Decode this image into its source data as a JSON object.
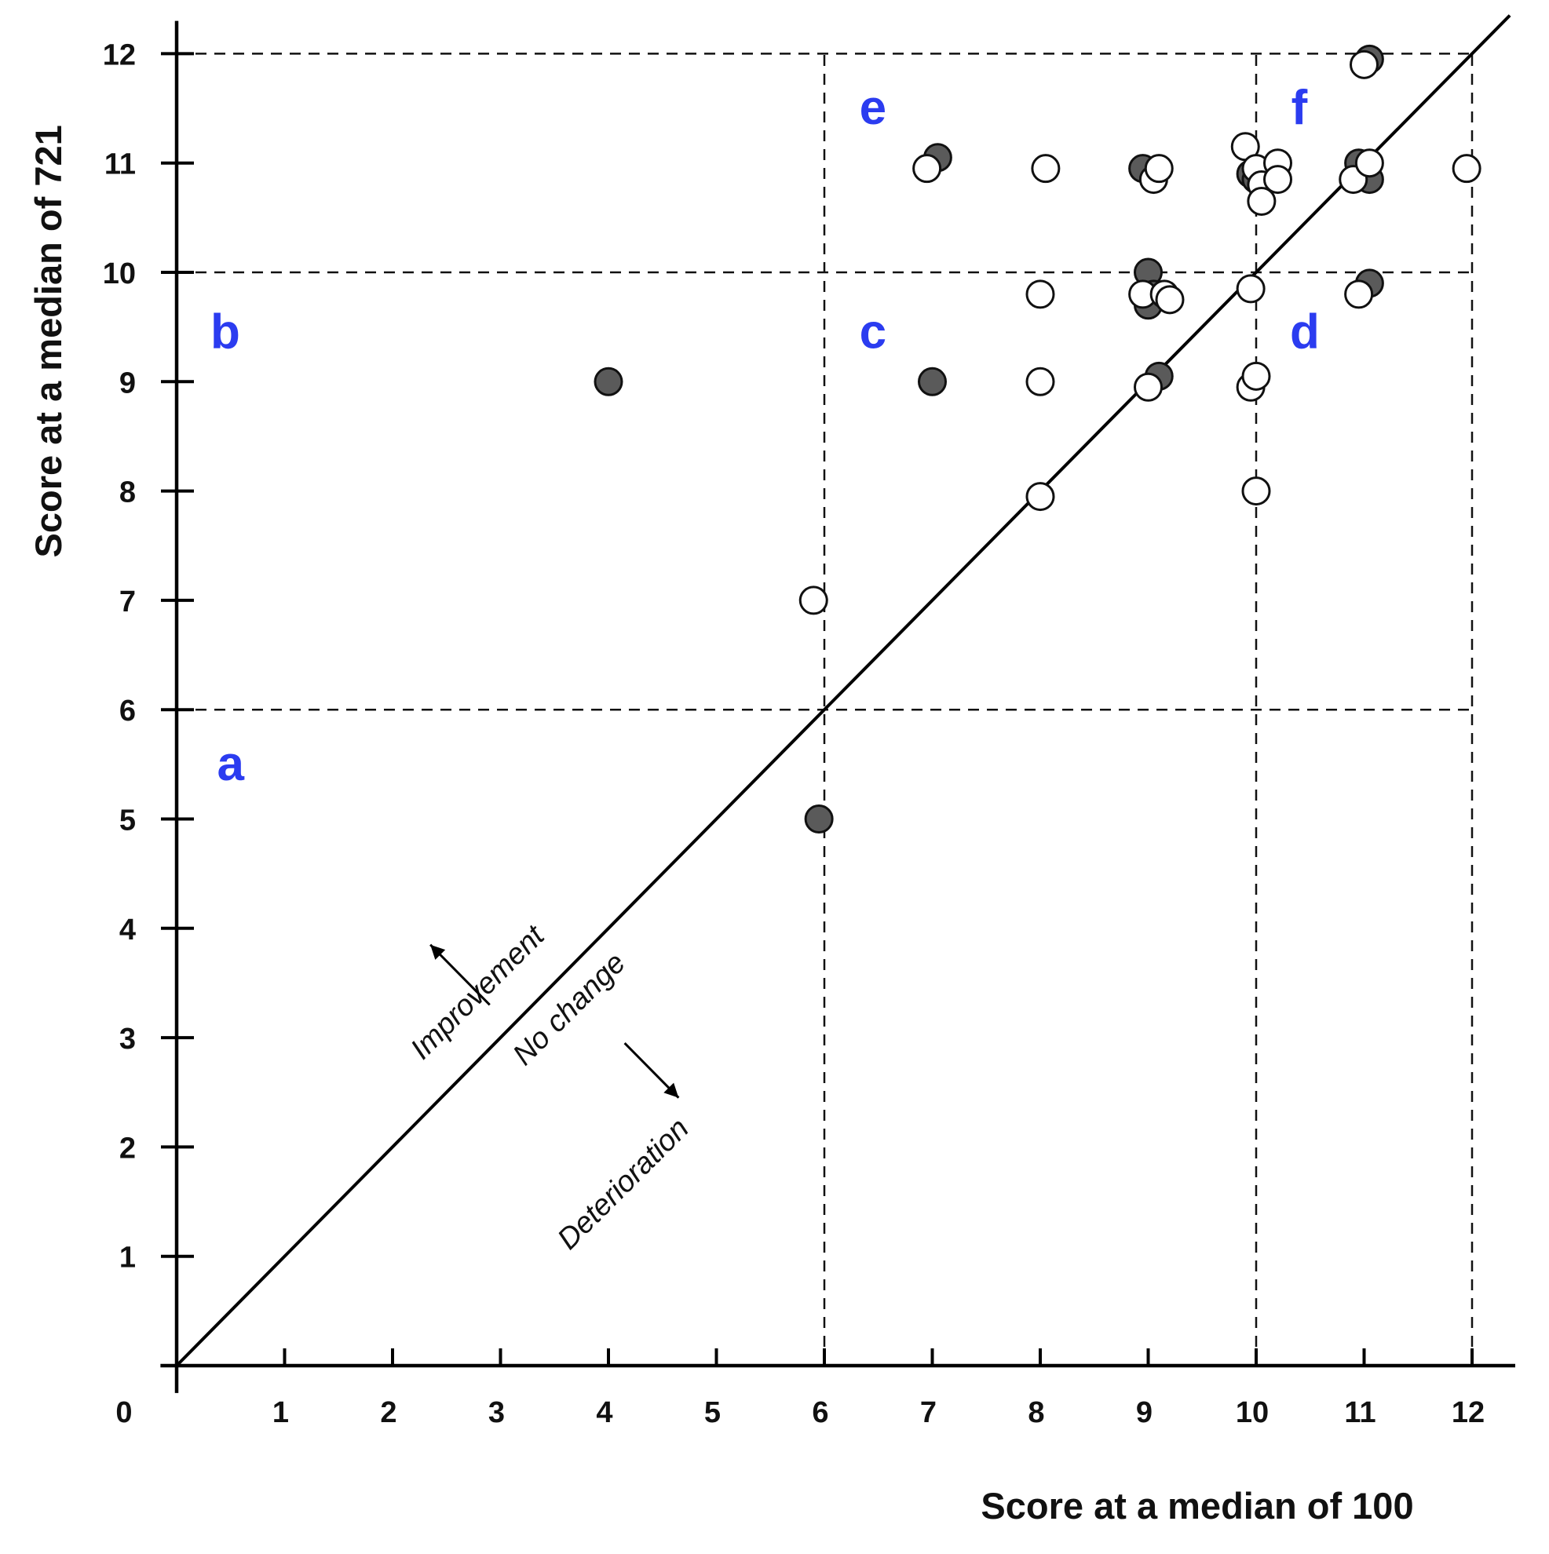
{
  "chart_data": {
    "type": "scatter",
    "xlabel": "Score at a median of 100",
    "ylabel": "Score at a median of  721",
    "xlim": [
      0,
      12.4
    ],
    "ylim": [
      0,
      12.3
    ],
    "origin_label": "0",
    "x_ticks": [
      1,
      2,
      3,
      4,
      5,
      6,
      7,
      8,
      9,
      10,
      11,
      12
    ],
    "y_ticks": [
      1,
      2,
      3,
      4,
      5,
      6,
      7,
      8,
      9,
      10,
      11,
      12
    ],
    "reference_lines": {
      "diagonal": "y = x",
      "vertical": [
        6,
        10,
        12
      ],
      "horizontal": [
        6,
        10,
        12
      ]
    },
    "regions": [
      {
        "id": "a",
        "label": "a",
        "x": 0.5,
        "y": 5.5
      },
      {
        "id": "b",
        "label": "b",
        "x": 0.45,
        "y": 9.45
      },
      {
        "id": "c",
        "label": "c",
        "x": 6.45,
        "y": 9.45
      },
      {
        "id": "d",
        "label": "d",
        "x": 10.45,
        "y": 9.45
      },
      {
        "id": "e",
        "label": "e",
        "x": 6.45,
        "y": 11.5
      },
      {
        "id": "f",
        "label": "f",
        "x": 10.4,
        "y": 11.5
      }
    ],
    "annotations": [
      {
        "text": "Improvement",
        "x": 2.85,
        "y": 3.35,
        "rotation": -45
      },
      {
        "text": "No change",
        "x": 3.7,
        "y": 3.2,
        "rotation": -45
      },
      {
        "text": "Deterioration",
        "x": 4.2,
        "y": 1.6,
        "rotation": -45
      }
    ],
    "arrows": [
      {
        "from": [
          2.9,
          3.3
        ],
        "to": [
          2.35,
          3.85
        ]
      },
      {
        "from": [
          4.15,
          2.95
        ],
        "to": [
          4.65,
          2.45
        ]
      }
    ],
    "series": [
      {
        "name": "filled",
        "color": "#5a5a5a",
        "points": [
          [
            4.0,
            9.0
          ],
          [
            7.0,
            9.0
          ],
          [
            5.95,
            5.0
          ],
          [
            7.05,
            11.05
          ],
          [
            8.95,
            10.95
          ],
          [
            9.0,
            10.0
          ],
          [
            9.05,
            9.8
          ],
          [
            9.0,
            9.7
          ],
          [
            9.1,
            9.05
          ],
          [
            9.95,
            10.9
          ],
          [
            10.0,
            10.85
          ],
          [
            10.95,
            11.0
          ],
          [
            11.05,
            10.85
          ],
          [
            11.05,
            9.9
          ],
          [
            11.05,
            11.95
          ]
        ]
      },
      {
        "name": "open",
        "color": "#ffffff",
        "points": [
          [
            6.95,
            10.95
          ],
          [
            8.05,
            10.95
          ],
          [
            9.05,
            10.85
          ],
          [
            9.1,
            10.95
          ],
          [
            9.9,
            11.15
          ],
          [
            10.0,
            10.95
          ],
          [
            10.05,
            10.8
          ],
          [
            10.05,
            10.65
          ],
          [
            10.2,
            11.0
          ],
          [
            10.2,
            10.85
          ],
          [
            10.9,
            10.85
          ],
          [
            11.05,
            11.0
          ],
          [
            11.0,
            11.9
          ],
          [
            11.95,
            10.95
          ],
          [
            8.0,
            9.8
          ],
          [
            8.95,
            9.8
          ],
          [
            9.15,
            9.8
          ],
          [
            9.2,
            9.75
          ],
          [
            9.95,
            9.85
          ],
          [
            10.95,
            9.8
          ],
          [
            8.0,
            9.0
          ],
          [
            9.0,
            8.95
          ],
          [
            9.95,
            8.95
          ],
          [
            10.0,
            9.05
          ],
          [
            8.0,
            7.95
          ],
          [
            10.0,
            8.0
          ],
          [
            5.9,
            7.0
          ]
        ]
      }
    ]
  }
}
